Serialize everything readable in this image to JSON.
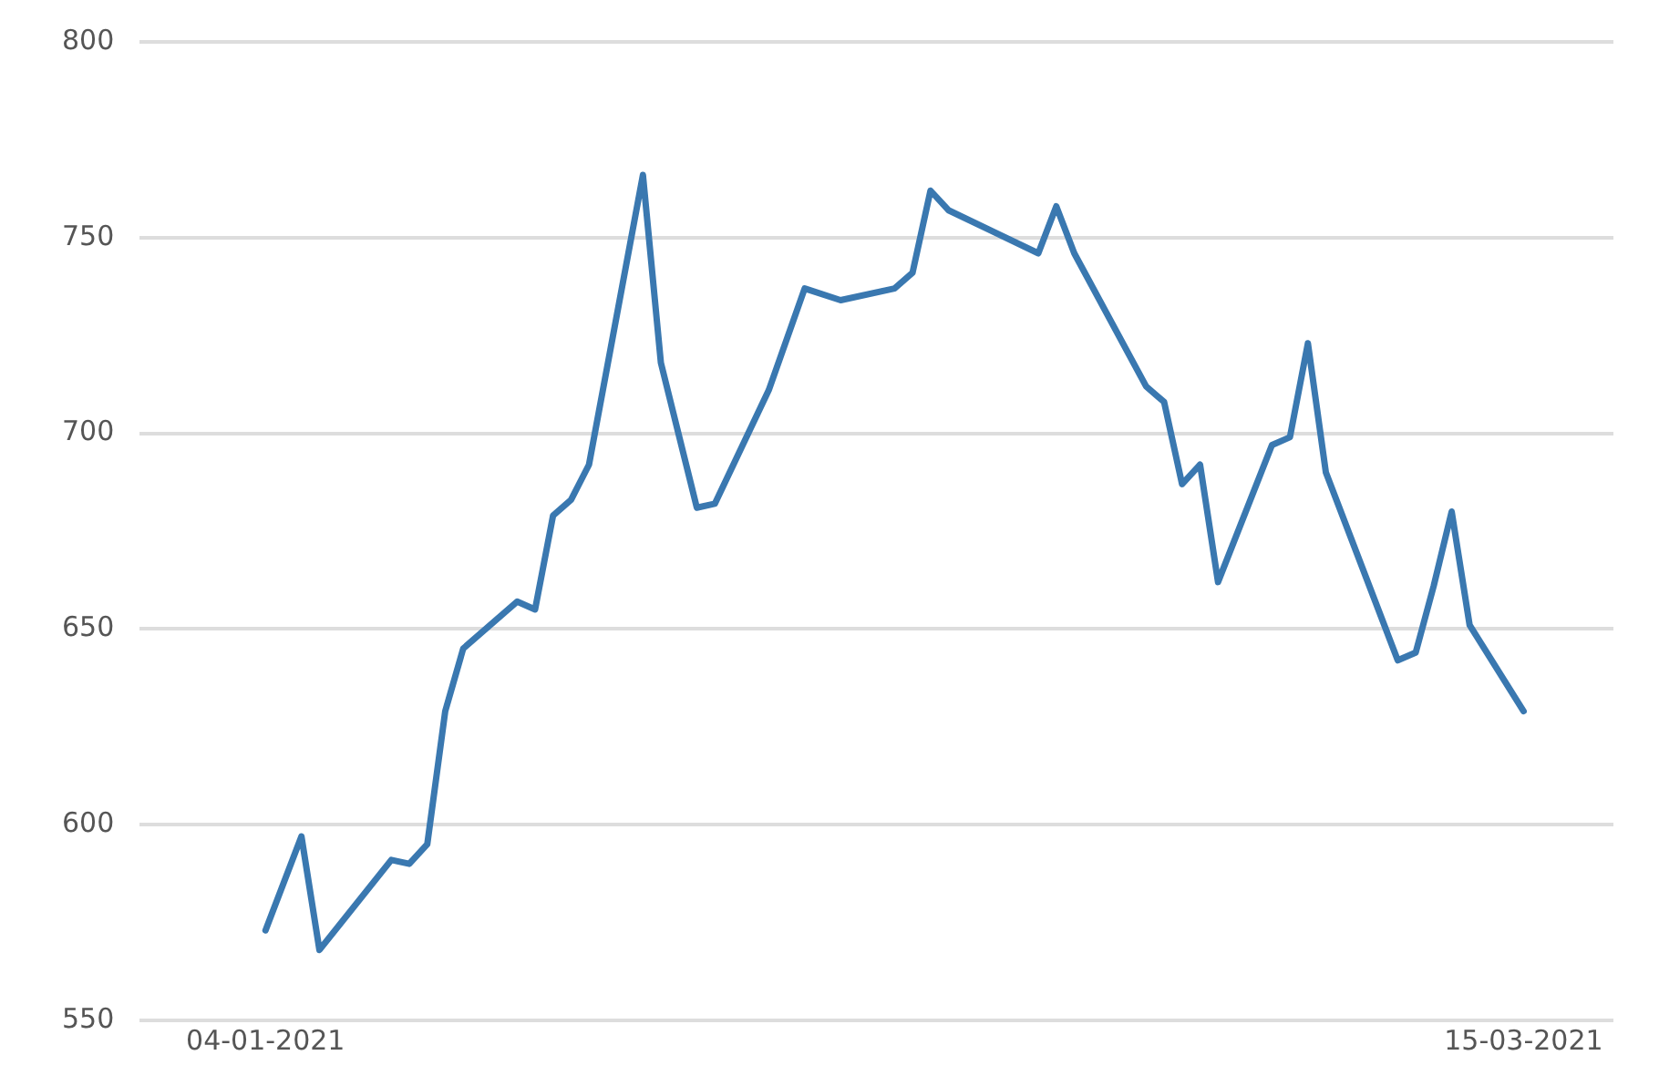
{
  "chart_data": {
    "type": "line",
    "x": [
      "2021-01-04",
      "2021-01-06",
      "2021-01-07",
      "2021-01-11",
      "2021-01-12",
      "2021-01-13",
      "2021-01-14",
      "2021-01-15",
      "2021-01-18",
      "2021-01-19",
      "2021-01-20",
      "2021-01-21",
      "2021-01-22",
      "2021-01-25",
      "2021-01-26",
      "2021-01-28",
      "2021-01-29",
      "2021-02-01",
      "2021-02-03",
      "2021-02-05",
      "2021-02-08",
      "2021-02-09",
      "2021-02-10",
      "2021-02-11",
      "2021-02-16",
      "2021-02-17",
      "2021-02-18",
      "2021-02-22",
      "2021-02-23",
      "2021-02-24",
      "2021-02-25",
      "2021-02-26",
      "2021-03-01",
      "2021-03-02",
      "2021-03-03",
      "2021-03-04",
      "2021-03-08",
      "2021-03-09",
      "2021-03-10",
      "2021-03-11",
      "2021-03-12",
      "2021-03-15"
    ],
    "series": [
      {
        "color": "#3a78b0",
        "values": [
          573,
          597,
          568,
          591,
          590,
          595,
          629,
          645,
          657,
          655,
          679,
          683,
          692,
          766,
          718,
          681,
          682,
          711,
          737,
          734,
          737,
          741,
          762,
          757,
          746,
          758,
          746,
          712,
          708,
          687,
          692,
          662,
          697,
          699,
          723,
          690,
          642,
          644,
          661,
          680,
          651,
          629
        ]
      }
    ],
    "xlim": [
      "2020-12-28",
      "2021-03-20"
    ],
    "xticks": [
      {
        "value": "2021-01-04",
        "label": "04-01-2021"
      },
      {
        "value": "2021-03-15",
        "label": "15-03-2021"
      }
    ],
    "ylim": [
      550,
      800
    ],
    "yticks": [
      550,
      600,
      650,
      700,
      750,
      800
    ],
    "grid": "y",
    "marker": "none",
    "line_style": "solid",
    "legend": false
  }
}
